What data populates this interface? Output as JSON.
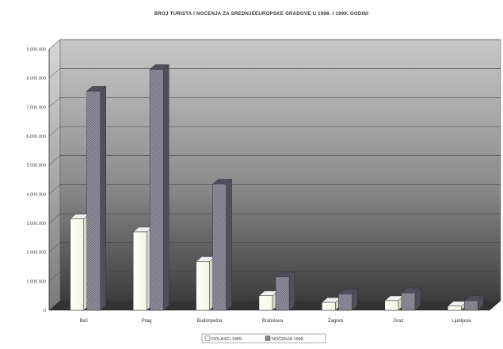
{
  "chart_data": {
    "type": "bar",
    "title": "BROJ TURISTA I NOĆENJA ZA SREDNJEEUROPSKE GRADOVE U 1998. I 1999. GODINI",
    "categories": [
      "Beč",
      "Prag",
      "Budimpešta",
      "Bratislava",
      "Zagreb",
      "Graz",
      "Ljubljana"
    ],
    "series": [
      {
        "name": "DOLASCI 1999.",
        "values": [
          3150000,
          2700000,
          1680000,
          500000,
          270000,
          330000,
          140000
        ],
        "color": "#fffff0"
      },
      {
        "name": "NOĆENJA 1999.",
        "values": [
          7550000,
          8300000,
          4350000,
          1150000,
          560000,
          600000,
          330000
        ],
        "color": "#8a8a96"
      }
    ],
    "ylim": [
      0,
      9000000
    ],
    "yticks": [
      "0",
      "1.000.000",
      "2.000.000",
      "3.000.000",
      "4.000.000",
      "5.000.000",
      "6.000.000",
      "7.000.000",
      "8.000.000",
      "9.000.000"
    ],
    "grid": true,
    "legend": "bottom-center"
  }
}
